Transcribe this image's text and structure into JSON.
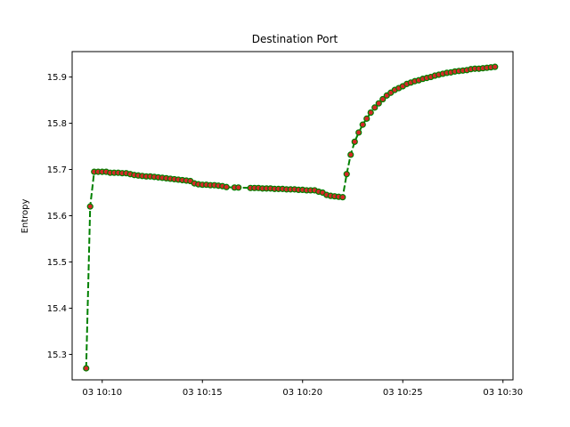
{
  "chart_data": {
    "type": "line",
    "title": "Destination Port",
    "xlabel": "",
    "ylabel": "Entropy",
    "x_type": "time",
    "xlim": [
      "03 10:08:30",
      "03 10:30:30"
    ],
    "ylim": [
      15.245,
      15.955
    ],
    "x_ticks": [
      {
        "t": "03 10:10",
        "label": "03 10:10"
      },
      {
        "t": "03 10:15",
        "label": "03 10:15"
      },
      {
        "t": "03 10:20",
        "label": "03 10:20"
      },
      {
        "t": "03 10:25",
        "label": "03 10:25"
      },
      {
        "t": "03 10:30",
        "label": "03 10:30"
      }
    ],
    "y_ticks": [
      15.3,
      15.4,
      15.5,
      15.6,
      15.7,
      15.8,
      15.9
    ],
    "grid": false,
    "legend": "none",
    "line_color": "#008000",
    "line_style": "dashed",
    "marker_color": "#d62728",
    "marker_edge_color": "#008000",
    "series": [
      {
        "x": [
          "03 10:09:12",
          "03 10:09:24",
          "03 10:09:36",
          "03 10:09:48",
          "03 10:10:00",
          "03 10:10:12",
          "03 10:10:24",
          "03 10:10:36",
          "03 10:10:48",
          "03 10:11:00",
          "03 10:11:12",
          "03 10:11:24",
          "03 10:11:36",
          "03 10:11:48",
          "03 10:12:00",
          "03 10:12:12",
          "03 10:12:24",
          "03 10:12:36",
          "03 10:12:48",
          "03 10:13:00",
          "03 10:13:12",
          "03 10:13:24",
          "03 10:13:36",
          "03 10:13:48",
          "03 10:14:00",
          "03 10:14:12",
          "03 10:14:24",
          "03 10:14:36",
          "03 10:14:48",
          "03 10:15:00",
          "03 10:15:12",
          "03 10:15:24",
          "03 10:15:36",
          "03 10:15:48",
          "03 10:16:00",
          "03 10:16:12",
          "03 10:16:36",
          "03 10:16:48",
          "03 10:17:24",
          "03 10:17:36",
          "03 10:17:48",
          "03 10:18:00",
          "03 10:18:12",
          "03 10:18:24",
          "03 10:18:36",
          "03 10:18:48",
          "03 10:19:00",
          "03 10:19:12",
          "03 10:19:24",
          "03 10:19:36",
          "03 10:19:48",
          "03 10:20:00",
          "03 10:20:12",
          "03 10:20:24",
          "03 10:20:36",
          "03 10:20:48",
          "03 10:21:00",
          "03 10:21:12",
          "03 10:21:24",
          "03 10:21:36",
          "03 10:21:48",
          "03 10:22:00",
          "03 10:22:12",
          "03 10:22:24",
          "03 10:22:36",
          "03 10:22:48",
          "03 10:23:00",
          "03 10:23:12",
          "03 10:23:24",
          "03 10:23:36",
          "03 10:23:48",
          "03 10:24:00",
          "03 10:24:12",
          "03 10:24:24",
          "03 10:24:36",
          "03 10:24:48",
          "03 10:25:00",
          "03 10:25:12",
          "03 10:25:24",
          "03 10:25:36",
          "03 10:25:48",
          "03 10:26:00",
          "03 10:26:12",
          "03 10:26:24",
          "03 10:26:36",
          "03 10:26:48",
          "03 10:27:00",
          "03 10:27:12",
          "03 10:27:24",
          "03 10:27:36",
          "03 10:27:48",
          "03 10:28:00",
          "03 10:28:12",
          "03 10:28:24",
          "03 10:28:36",
          "03 10:28:48",
          "03 10:29:00",
          "03 10:29:12",
          "03 10:29:24",
          "03 10:29:36"
        ],
        "values": [
          15.27,
          15.62,
          15.695,
          15.695,
          15.695,
          15.695,
          15.693,
          15.693,
          15.693,
          15.692,
          15.692,
          15.69,
          15.688,
          15.687,
          15.686,
          15.685,
          15.685,
          15.684,
          15.683,
          15.682,
          15.681,
          15.68,
          15.679,
          15.678,
          15.677,
          15.676,
          15.675,
          15.67,
          15.668,
          15.667,
          15.667,
          15.666,
          15.666,
          15.665,
          15.664,
          15.662,
          15.661,
          15.661,
          15.66,
          15.66,
          15.66,
          15.659,
          15.659,
          15.659,
          15.658,
          15.658,
          15.658,
          15.657,
          15.657,
          15.657,
          15.656,
          15.656,
          15.655,
          15.655,
          15.655,
          15.652,
          15.65,
          15.645,
          15.643,
          15.642,
          15.641,
          15.64,
          15.69,
          15.732,
          15.76,
          15.78,
          15.797,
          15.81,
          15.823,
          15.834,
          15.843,
          15.852,
          15.86,
          15.866,
          15.872,
          15.876,
          15.88,
          15.885,
          15.888,
          15.891,
          15.893,
          15.896,
          15.898,
          15.9,
          15.903,
          15.905,
          15.907,
          15.909,
          15.91,
          15.912,
          15.913,
          15.914,
          15.915,
          15.917,
          15.918,
          15.918,
          15.919,
          15.92,
          15.921,
          15.922
        ]
      }
    ]
  }
}
